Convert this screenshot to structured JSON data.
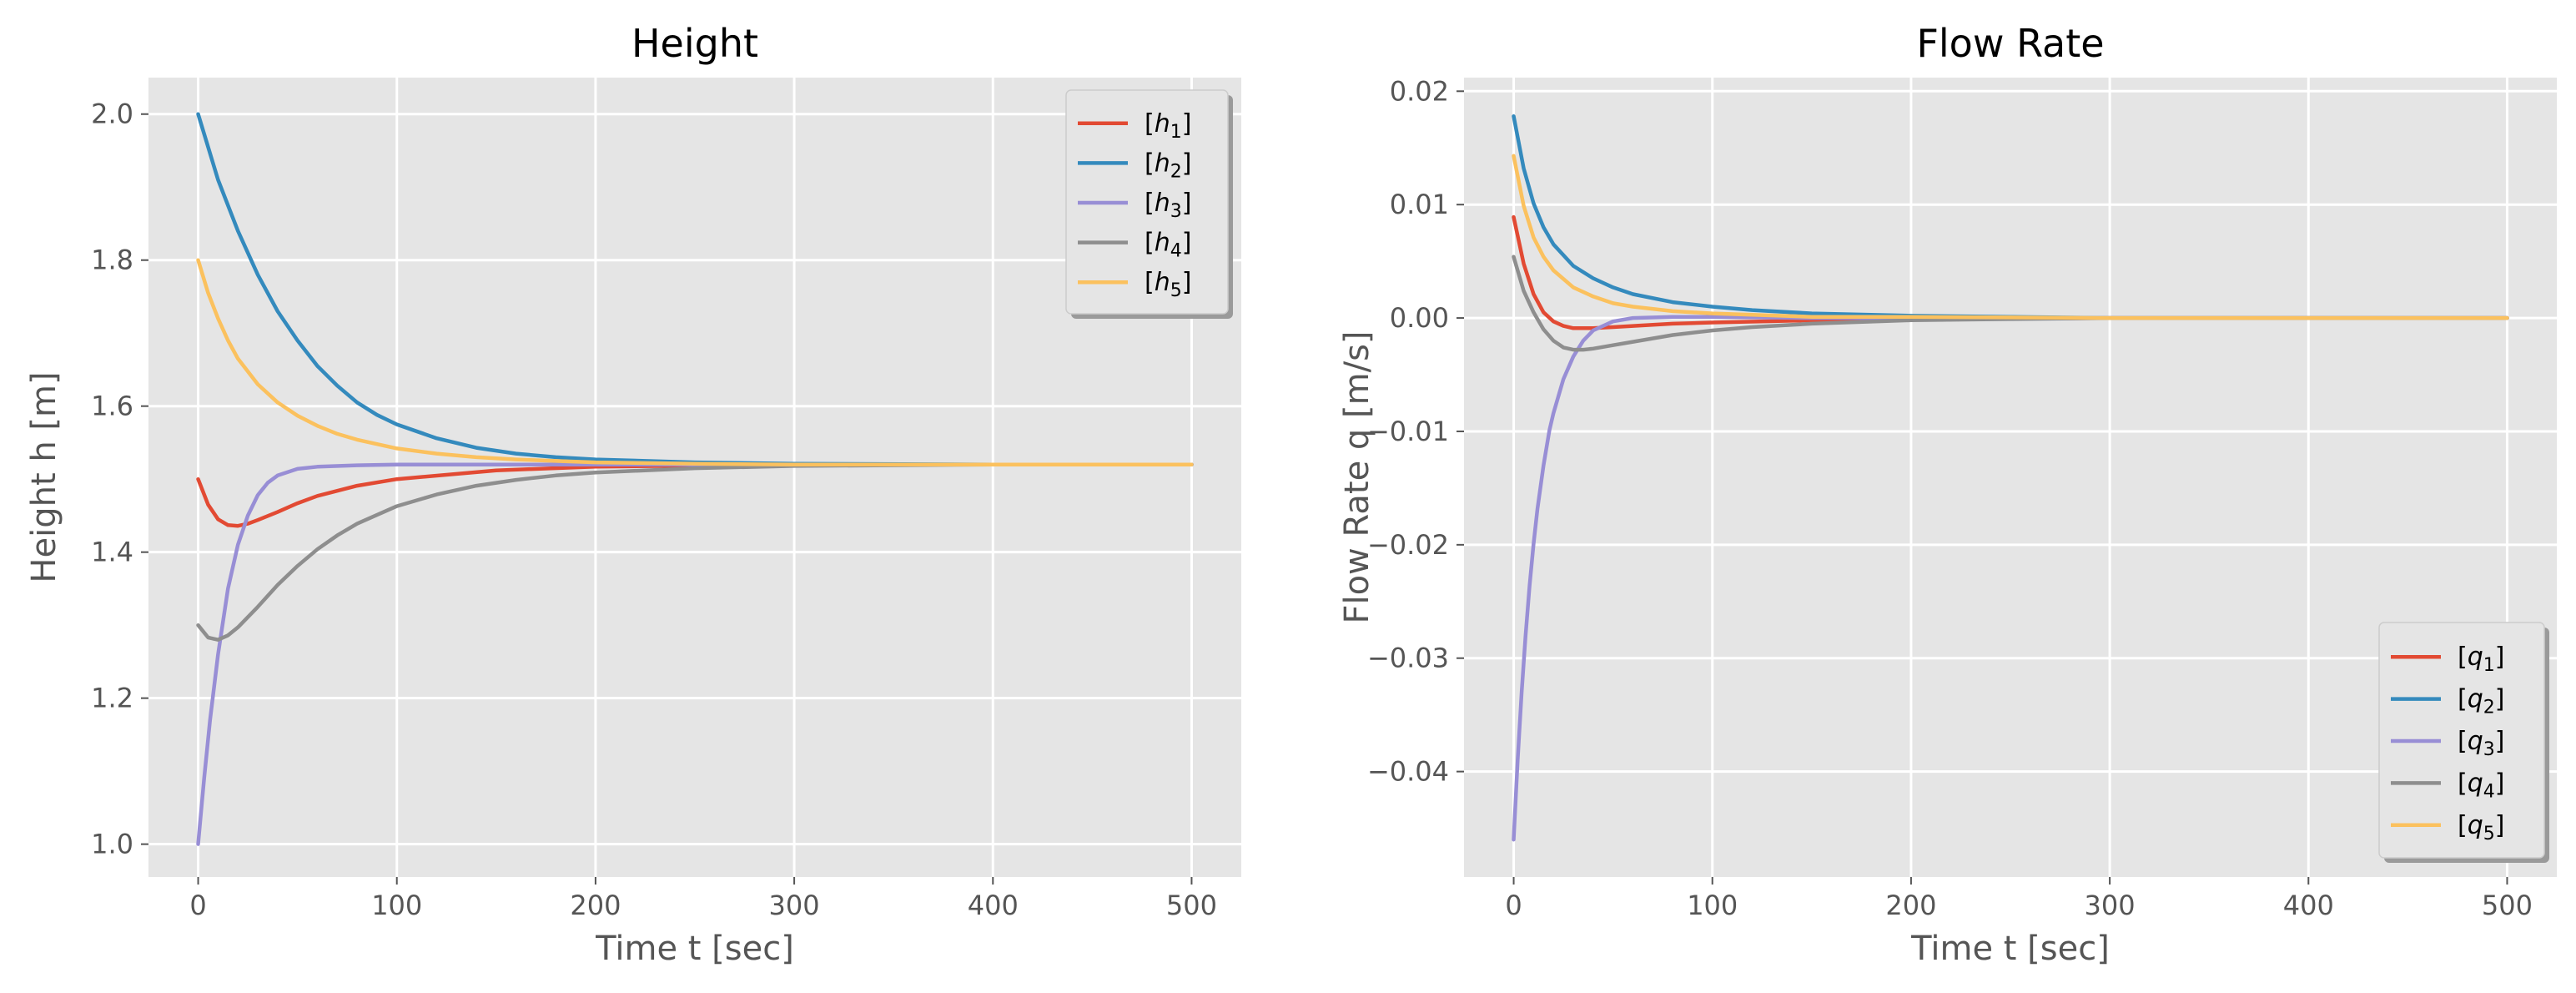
{
  "colors": {
    "figure_bg": "#ffffff",
    "axes_bg": "#e5e5e5",
    "grid": "#ffffff",
    "text": "#555555",
    "series": [
      "#e24a33",
      "#348abd",
      "#988ed5",
      "#8e8e8e",
      "#fbc15e"
    ]
  },
  "chart_data": [
    {
      "type": "line",
      "title": "Height",
      "xlabel": "Time t [sec]",
      "ylabel": "Height h [m]",
      "xlim": [
        -25,
        525
      ],
      "ylim": [
        0.955,
        2.05
      ],
      "xticks": [
        0,
        100,
        200,
        300,
        400,
        500
      ],
      "xtick_labels": [
        "0",
        "100",
        "200",
        "300",
        "400",
        "500"
      ],
      "yticks": [
        1.0,
        1.2,
        1.4,
        1.6,
        1.8,
        2.0
      ],
      "ytick_labels": [
        "1.0",
        "1.2",
        "1.4",
        "1.6",
        "1.8",
        "2.0"
      ],
      "grid": true,
      "legend_position": "top-right",
      "series": [
        {
          "name": "[h1]",
          "base": "h",
          "sub": "1",
          "x": [
            0,
            5,
            10,
            15,
            20,
            25,
            30,
            40,
            50,
            60,
            80,
            100,
            150,
            200,
            300,
            400,
            500
          ],
          "y": [
            1.5,
            1.465,
            1.445,
            1.437,
            1.436,
            1.439,
            1.444,
            1.455,
            1.467,
            1.477,
            1.491,
            1.5,
            1.512,
            1.517,
            1.52,
            1.52,
            1.52
          ]
        },
        {
          "name": "[h2]",
          "base": "h",
          "sub": "2",
          "x": [
            0,
            10,
            20,
            30,
            40,
            50,
            60,
            70,
            80,
            90,
            100,
            120,
            140,
            160,
            180,
            200,
            250,
            300,
            400,
            500
          ],
          "y": [
            2.0,
            1.91,
            1.84,
            1.78,
            1.73,
            1.69,
            1.655,
            1.628,
            1.605,
            1.588,
            1.575,
            1.556,
            1.543,
            1.535,
            1.53,
            1.527,
            1.523,
            1.521,
            1.52,
            1.52
          ]
        },
        {
          "name": "[h3]",
          "base": "h",
          "sub": "3",
          "x": [
            0,
            3,
            6,
            10,
            15,
            20,
            25,
            30,
            35,
            40,
            50,
            60,
            80,
            100,
            150,
            200,
            300,
            400,
            500
          ],
          "y": [
            1.0,
            1.09,
            1.17,
            1.26,
            1.35,
            1.41,
            1.45,
            1.478,
            1.495,
            1.505,
            1.514,
            1.517,
            1.519,
            1.52,
            1.52,
            1.52,
            1.52,
            1.52,
            1.52
          ]
        },
        {
          "name": "[h4]",
          "base": "h",
          "sub": "4",
          "x": [
            0,
            5,
            10,
            15,
            20,
            30,
            40,
            50,
            60,
            70,
            80,
            100,
            120,
            140,
            160,
            180,
            200,
            250,
            300,
            400,
            500
          ],
          "y": [
            1.3,
            1.283,
            1.28,
            1.286,
            1.297,
            1.325,
            1.355,
            1.381,
            1.404,
            1.423,
            1.439,
            1.463,
            1.479,
            1.491,
            1.499,
            1.505,
            1.509,
            1.515,
            1.518,
            1.52,
            1.52
          ]
        },
        {
          "name": "[h5]",
          "base": "h",
          "sub": "5",
          "x": [
            0,
            5,
            10,
            15,
            20,
            30,
            40,
            50,
            60,
            70,
            80,
            100,
            120,
            140,
            160,
            200,
            250,
            300,
            400,
            500
          ],
          "y": [
            1.8,
            1.755,
            1.72,
            1.69,
            1.665,
            1.63,
            1.605,
            1.587,
            1.573,
            1.562,
            1.554,
            1.542,
            1.535,
            1.53,
            1.527,
            1.523,
            1.521,
            1.52,
            1.52,
            1.52
          ]
        }
      ]
    },
    {
      "type": "line",
      "title": "Flow Rate",
      "xlabel": "Time t [sec]",
      "ylabel": "Flow Rate q [m/s]",
      "xlim": [
        -25,
        525
      ],
      "ylim": [
        -0.0493,
        0.0212
      ],
      "xticks": [
        0,
        100,
        200,
        300,
        400,
        500
      ],
      "xtick_labels": [
        "0",
        "100",
        "200",
        "300",
        "400",
        "500"
      ],
      "yticks": [
        -0.04,
        -0.03,
        -0.02,
        -0.01,
        0.0,
        0.01,
        0.02
      ],
      "ytick_labels": [
        "−0.04",
        "−0.03",
        "−0.02",
        "−0.01",
        "0.00",
        "0.01",
        "0.02"
      ],
      "grid": true,
      "legend_position": "bottom-right",
      "series": [
        {
          "name": "[q1]",
          "base": "q",
          "sub": "1",
          "x": [
            0,
            5,
            10,
            15,
            20,
            25,
            30,
            40,
            50,
            60,
            80,
            100,
            150,
            200,
            300,
            400,
            500
          ],
          "y": [
            0.0089,
            0.0048,
            0.0021,
            0.0005,
            -0.0003,
            -0.0007,
            -0.0009,
            -0.0009,
            -0.0008,
            -0.0007,
            -0.0005,
            -0.0004,
            -0.0002,
            -0.0001,
            0.0,
            0.0,
            0.0
          ]
        },
        {
          "name": "[q2]",
          "base": "q",
          "sub": "2",
          "x": [
            0,
            5,
            10,
            15,
            20,
            30,
            40,
            50,
            60,
            80,
            100,
            120,
            150,
            200,
            250,
            300,
            400,
            500
          ],
          "y": [
            0.0178,
            0.0132,
            0.0101,
            0.008,
            0.0065,
            0.0046,
            0.0035,
            0.0027,
            0.0021,
            0.0014,
            0.001,
            0.0007,
            0.0004,
            0.0002,
            0.0001,
            0.0,
            0.0,
            0.0
          ]
        },
        {
          "name": "[q3]",
          "base": "q",
          "sub": "3",
          "x": [
            0,
            2,
            4,
            6,
            8,
            10,
            12,
            15,
            18,
            20,
            25,
            30,
            35,
            40,
            50,
            60,
            80,
            100,
            150,
            200,
            300,
            400,
            500
          ],
          "y": [
            -0.046,
            -0.039,
            -0.033,
            -0.028,
            -0.0236,
            -0.0199,
            -0.0168,
            -0.013,
            -0.0099,
            -0.0084,
            -0.0054,
            -0.0034,
            -0.002,
            -0.0011,
            -0.0003,
            0.0,
            0.0001,
            0.0001,
            0.0,
            0.0,
            0.0,
            0.0,
            0.0
          ]
        },
        {
          "name": "[q4]",
          "base": "q",
          "sub": "4",
          "x": [
            0,
            5,
            10,
            15,
            20,
            25,
            30,
            35,
            40,
            50,
            60,
            80,
            100,
            120,
            150,
            200,
            250,
            300,
            400,
            500
          ],
          "y": [
            0.0054,
            0.0024,
            0.0005,
            -0.001,
            -0.002,
            -0.0026,
            -0.0028,
            -0.0028,
            -0.0027,
            -0.0024,
            -0.0021,
            -0.0015,
            -0.0011,
            -0.0008,
            -0.0005,
            -0.0002,
            -0.0001,
            0.0,
            0.0,
            0.0
          ]
        },
        {
          "name": "[q5]",
          "base": "q",
          "sub": "5",
          "x": [
            0,
            5,
            10,
            15,
            20,
            30,
            40,
            50,
            60,
            80,
            100,
            150,
            200,
            300,
            400,
            500
          ],
          "y": [
            0.0143,
            0.0099,
            0.0071,
            0.0054,
            0.0042,
            0.0027,
            0.0019,
            0.0013,
            0.001,
            0.0006,
            0.0004,
            0.0001,
            0.0001,
            0.0,
            0.0,
            0.0
          ]
        }
      ]
    }
  ]
}
